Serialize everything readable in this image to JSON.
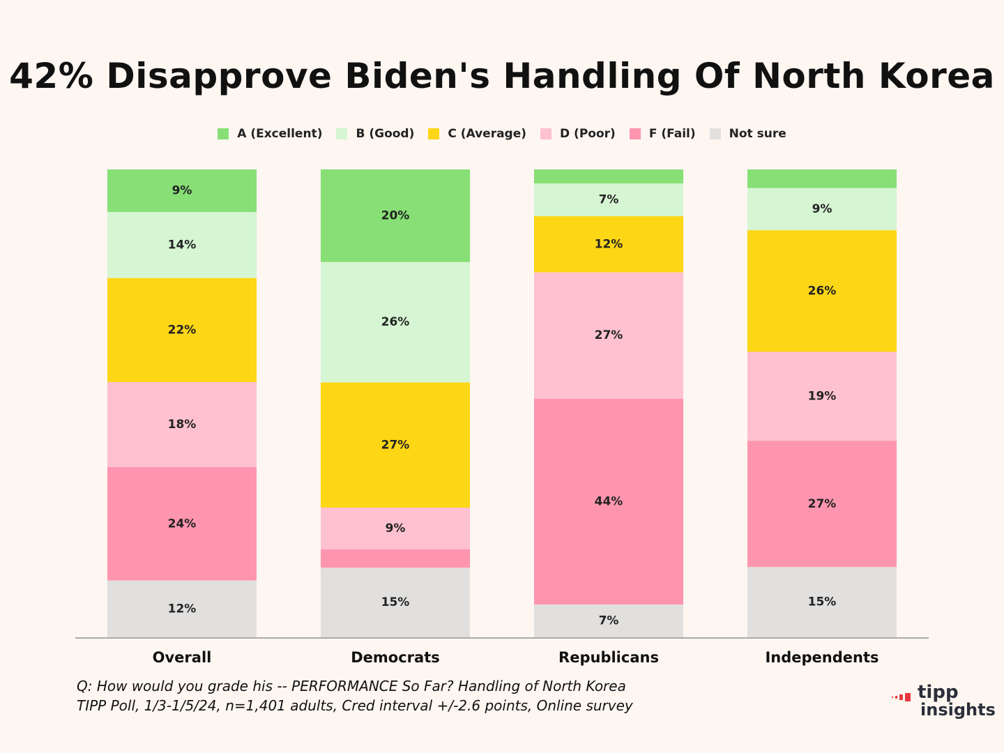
{
  "title": "42% Disapprove Biden's Handling Of North Korea",
  "colors": {
    "A (Excellent)": "#87df76",
    "B (Good)": "#d6f5d3",
    "C (Average)": "#fdd616",
    "D (Poor)": "#fec1d0",
    "F (Fail)": "#fe95ae",
    "Not sure": "#e1e0df",
    "axis": "#aaaaaa",
    "background": "#fdf6f1"
  },
  "chart_data": {
    "type": "bar",
    "stacked": true,
    "title": "42% Disapprove Biden's Handling Of North Korea",
    "categories": [
      "Overall",
      "Democrats",
      "Republicans",
      "Independents"
    ],
    "ylim": [
      0,
      100
    ],
    "grid": false,
    "legend_position": "top-center",
    "series": [
      {
        "name": "A (Excellent)",
        "values": [
          9,
          20,
          3,
          4
        ],
        "labels": [
          "9%",
          "20%",
          "",
          ""
        ]
      },
      {
        "name": "B (Good)",
        "values": [
          14,
          26,
          7,
          9
        ],
        "labels": [
          "14%",
          "26%",
          "7%",
          "9%"
        ]
      },
      {
        "name": "C (Average)",
        "values": [
          22,
          27,
          12,
          26
        ],
        "labels": [
          "22%",
          "27%",
          "12%",
          "26%"
        ]
      },
      {
        "name": "D (Poor)",
        "values": [
          18,
          9,
          27,
          19
        ],
        "labels": [
          "18%",
          "9%",
          "27%",
          "19%"
        ]
      },
      {
        "name": "F (Fail)",
        "values": [
          24,
          4,
          44,
          27
        ],
        "labels": [
          "24%",
          "",
          "44%",
          "27%"
        ]
      },
      {
        "name": "Not sure",
        "values": [
          12,
          15,
          7,
          15
        ],
        "labels": [
          "12%",
          "15%",
          "7%",
          "15%"
        ]
      }
    ]
  },
  "footnote": {
    "line1": "Q:  How would you grade his -- PERFORMANCE So Far?  Handling of North Korea",
    "line2": "TIPP Poll, 1/3-1/5/24, n=1,401 adults, Cred interval +/-2.6 points, Online survey"
  },
  "logo": {
    "line1": "tipp",
    "line2": "insights",
    "accent": "#e8383d"
  }
}
